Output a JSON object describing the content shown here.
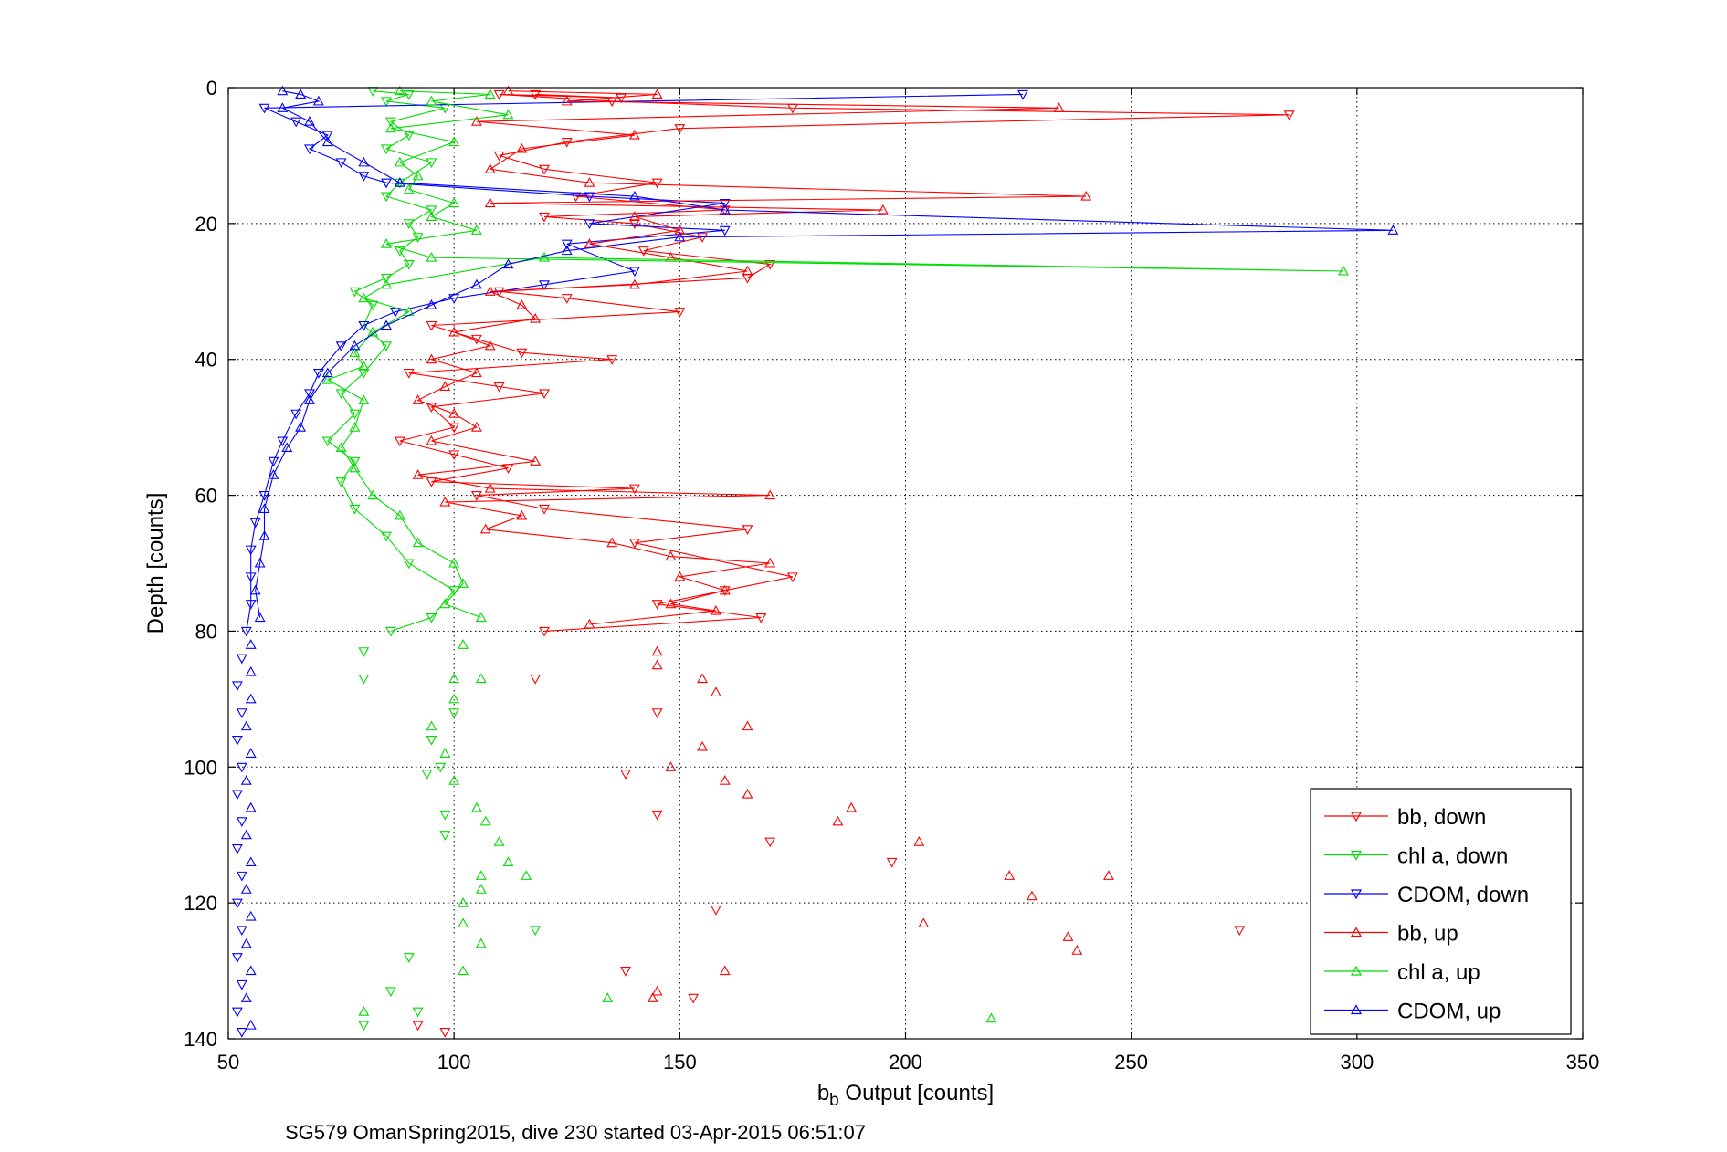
{
  "chart_data": {
    "type": "line",
    "title": "",
    "xlabel_main": "b",
    "xlabel_sub": "b",
    "xlabel_rest": " Output [counts]",
    "ylabel": "Depth [counts]",
    "caption": "SG579 OmanSpring2015, dive 230 started 03-Apr-2015 06:51:07",
    "xlim": [
      50,
      350
    ],
    "ylim": [
      0,
      140
    ],
    "y_reversed": true,
    "grid": true,
    "legend_position": "bottom-right",
    "xticks": [
      50,
      100,
      150,
      200,
      250,
      300,
      350
    ],
    "yticks": [
      0,
      20,
      40,
      60,
      80,
      100,
      120,
      140
    ],
    "series": [
      {
        "name": "bb, down",
        "color": "#ff0000",
        "marker": "triangle-down",
        "points": [
          [
            118,
            1
          ],
          [
            137,
            1.5
          ],
          [
            110,
            1
          ],
          [
            135,
            2
          ],
          [
            175,
            3
          ],
          [
            285,
            4
          ],
          [
            150,
            6
          ],
          [
            125,
            8
          ],
          [
            110,
            10
          ],
          [
            120,
            12
          ],
          [
            145,
            14
          ],
          [
            127,
            16
          ],
          [
            160,
            18
          ],
          [
            120,
            19
          ],
          [
            140,
            20
          ],
          [
            155,
            22
          ],
          [
            142,
            24
          ],
          [
            170,
            26
          ],
          [
            165,
            28
          ],
          [
            110,
            30
          ],
          [
            125,
            31
          ],
          [
            150,
            33
          ],
          [
            95,
            35
          ],
          [
            105,
            37
          ],
          [
            115,
            39
          ],
          [
            135,
            40
          ],
          [
            90,
            42
          ],
          [
            110,
            44
          ],
          [
            120,
            45
          ],
          [
            95,
            47
          ],
          [
            100,
            50
          ],
          [
            88,
            52
          ],
          [
            100,
            54
          ],
          [
            112,
            56
          ],
          [
            95,
            58
          ],
          [
            140,
            59
          ],
          [
            105,
            60
          ],
          [
            120,
            62
          ],
          [
            165,
            65
          ],
          [
            140,
            67
          ],
          [
            175,
            72
          ],
          [
            160,
            74
          ],
          [
            145,
            76
          ],
          [
            168,
            78
          ],
          [
            120,
            80
          ],
          [
            118,
            87
          ],
          [
            145,
            92
          ],
          [
            138,
            101
          ],
          [
            145,
            107
          ],
          [
            170,
            111
          ],
          [
            197,
            114
          ],
          [
            158,
            121
          ],
          [
            274,
            124
          ],
          [
            138,
            130
          ],
          [
            153,
            134
          ],
          [
            92,
            138
          ],
          [
            98,
            139
          ]
        ]
      },
      {
        "name": "chl a, down",
        "color": "#00dd00",
        "marker": "triangle-down",
        "points": [
          [
            82,
            0.5
          ],
          [
            90,
            1
          ],
          [
            85,
            2
          ],
          [
            98,
            3
          ],
          [
            86,
            5
          ],
          [
            90,
            7
          ],
          [
            85,
            9
          ],
          [
            95,
            11
          ],
          [
            88,
            14
          ],
          [
            85,
            16
          ],
          [
            95,
            18
          ],
          [
            90,
            20
          ],
          [
            92,
            22
          ],
          [
            88,
            24
          ],
          [
            90,
            26
          ],
          [
            85,
            28
          ],
          [
            78,
            30
          ],
          [
            82,
            32
          ],
          [
            80,
            35
          ],
          [
            85,
            38
          ],
          [
            80,
            42
          ],
          [
            75,
            45
          ],
          [
            78,
            48
          ],
          [
            72,
            52
          ],
          [
            78,
            55
          ],
          [
            75,
            58
          ],
          [
            78,
            62
          ],
          [
            85,
            66
          ],
          [
            90,
            70
          ],
          [
            100,
            74
          ],
          [
            95,
            78
          ],
          [
            86,
            80
          ],
          [
            80,
            83
          ],
          [
            80,
            87
          ],
          [
            100,
            92
          ],
          [
            95,
            96
          ],
          [
            97,
            100
          ],
          [
            94,
            101
          ],
          [
            98,
            107
          ],
          [
            98,
            110
          ],
          [
            118,
            124
          ],
          [
            90,
            128
          ],
          [
            86,
            133
          ],
          [
            92,
            136
          ],
          [
            80,
            138
          ]
        ]
      },
      {
        "name": "CDOM, down",
        "color": "#0000ff",
        "marker": "triangle-down",
        "points": [
          [
            226,
            1
          ],
          [
            58,
            3
          ],
          [
            65,
            5
          ],
          [
            72,
            7
          ],
          [
            68,
            9
          ],
          [
            75,
            11
          ],
          [
            80,
            13
          ],
          [
            85,
            14
          ],
          [
            130,
            16
          ],
          [
            160,
            17
          ],
          [
            130,
            20
          ],
          [
            160,
            21
          ],
          [
            125,
            23
          ],
          [
            140,
            27
          ],
          [
            120,
            29
          ],
          [
            100,
            31
          ],
          [
            87,
            33
          ],
          [
            80,
            35
          ],
          [
            75,
            38
          ],
          [
            70,
            42
          ],
          [
            68,
            45
          ],
          [
            65,
            48
          ],
          [
            62,
            52
          ],
          [
            60,
            55
          ],
          [
            58,
            60
          ],
          [
            56,
            64
          ],
          [
            55,
            68
          ],
          [
            55,
            72
          ],
          [
            55,
            76
          ],
          [
            54,
            80
          ],
          [
            53,
            84
          ],
          [
            52,
            88
          ],
          [
            53,
            92
          ],
          [
            52,
            96
          ],
          [
            53,
            100
          ],
          [
            52,
            104
          ],
          [
            53,
            108
          ],
          [
            52,
            112
          ],
          [
            53,
            116
          ],
          [
            52,
            120
          ],
          [
            53,
            124
          ],
          [
            52,
            128
          ],
          [
            53,
            132
          ],
          [
            52,
            136
          ],
          [
            53,
            139
          ]
        ]
      },
      {
        "name": "bb, up",
        "color": "#ff0000",
        "marker": "triangle-up",
        "points": [
          [
            112,
            0.5
          ],
          [
            145,
            1
          ],
          [
            125,
            2
          ],
          [
            234,
            3
          ],
          [
            105,
            5
          ],
          [
            140,
            7
          ],
          [
            115,
            9
          ],
          [
            108,
            12
          ],
          [
            130,
            14
          ],
          [
            240,
            16
          ],
          [
            108,
            17
          ],
          [
            195,
            18
          ],
          [
            140,
            19
          ],
          [
            150,
            21
          ],
          [
            130,
            23
          ],
          [
            148,
            25
          ],
          [
            165,
            27
          ],
          [
            140,
            29
          ],
          [
            108,
            30
          ],
          [
            115,
            32
          ],
          [
            118,
            34
          ],
          [
            100,
            36
          ],
          [
            108,
            38
          ],
          [
            95,
            40
          ],
          [
            105,
            42
          ],
          [
            98,
            44
          ],
          [
            92,
            46
          ],
          [
            100,
            48
          ],
          [
            105,
            50
          ],
          [
            95,
            52
          ],
          [
            118,
            55
          ],
          [
            92,
            57
          ],
          [
            108,
            59
          ],
          [
            170,
            60
          ],
          [
            98,
            61
          ],
          [
            115,
            63
          ],
          [
            107,
            65
          ],
          [
            135,
            67
          ],
          [
            148,
            69
          ],
          [
            170,
            70
          ],
          [
            150,
            72
          ],
          [
            160,
            74
          ],
          [
            148,
            76
          ],
          [
            158,
            77
          ],
          [
            130,
            79
          ],
          [
            145,
            83
          ],
          [
            145,
            85
          ],
          [
            155,
            87
          ],
          [
            158,
            89
          ],
          [
            155,
            97
          ],
          [
            165,
            94
          ],
          [
            148,
            100
          ],
          [
            160,
            102
          ],
          [
            165,
            104
          ],
          [
            188,
            106
          ],
          [
            185,
            108
          ],
          [
            203,
            111
          ],
          [
            223,
            116
          ],
          [
            245,
            116
          ],
          [
            228,
            119
          ],
          [
            204,
            123
          ],
          [
            236,
            125
          ],
          [
            238,
            127
          ],
          [
            160,
            130
          ],
          [
            144,
            134
          ],
          [
            145,
            133
          ]
        ]
      },
      {
        "name": "chl a, up",
        "color": "#00dd00",
        "marker": "triangle-up",
        "points": [
          [
            88,
            0.5
          ],
          [
            108,
            1
          ],
          [
            95,
            2
          ],
          [
            112,
            4
          ],
          [
            86,
            6
          ],
          [
            100,
            8
          ],
          [
            88,
            11
          ],
          [
            92,
            13
          ],
          [
            90,
            15
          ],
          [
            100,
            17
          ],
          [
            95,
            19
          ],
          [
            105,
            21
          ],
          [
            85,
            23
          ],
          [
            95,
            25
          ],
          [
            297,
            27
          ],
          [
            120,
            25
          ],
          [
            85,
            29
          ],
          [
            80,
            31
          ],
          [
            90,
            33
          ],
          [
            82,
            36
          ],
          [
            78,
            39
          ],
          [
            80,
            41
          ],
          [
            72,
            43
          ],
          [
            80,
            46
          ],
          [
            78,
            50
          ],
          [
            75,
            53
          ],
          [
            78,
            56
          ],
          [
            82,
            60
          ],
          [
            88,
            63
          ],
          [
            92,
            67
          ],
          [
            100,
            70
          ],
          [
            102,
            73
          ],
          [
            98,
            76
          ],
          [
            106,
            78
          ],
          [
            102,
            82
          ],
          [
            100,
            87
          ],
          [
            100,
            90
          ],
          [
            106,
            87
          ],
          [
            95,
            94
          ],
          [
            98,
            98
          ],
          [
            100,
            102
          ],
          [
            105,
            106
          ],
          [
            107,
            108
          ],
          [
            110,
            111
          ],
          [
            112,
            114
          ],
          [
            106,
            116
          ],
          [
            116,
            116
          ],
          [
            106,
            118
          ],
          [
            102,
            120
          ],
          [
            102,
            123
          ],
          [
            106,
            126
          ],
          [
            102,
            130
          ],
          [
            134,
            134
          ],
          [
            219,
            137
          ],
          [
            80,
            136
          ]
        ]
      },
      {
        "name": "CDOM, up",
        "color": "#0000ff",
        "marker": "triangle-up",
        "points": [
          [
            62,
            0.5
          ],
          [
            66,
            1
          ],
          [
            70,
            2
          ],
          [
            62,
            3
          ],
          [
            68,
            5
          ],
          [
            72,
            8
          ],
          [
            80,
            11
          ],
          [
            88,
            14
          ],
          [
            140,
            16
          ],
          [
            160,
            18
          ],
          [
            308,
            21
          ],
          [
            150,
            22
          ],
          [
            125,
            24
          ],
          [
            112,
            26
          ],
          [
            105,
            29
          ],
          [
            95,
            32
          ],
          [
            85,
            35
          ],
          [
            78,
            38
          ],
          [
            72,
            42
          ],
          [
            68,
            46
          ],
          [
            66,
            50
          ],
          [
            63,
            53
          ],
          [
            60,
            57
          ],
          [
            58,
            62
          ],
          [
            58,
            66
          ],
          [
            57,
            70
          ],
          [
            56,
            74
          ],
          [
            57,
            78
          ],
          [
            55,
            82
          ],
          [
            55,
            86
          ],
          [
            55,
            90
          ],
          [
            54,
            94
          ],
          [
            55,
            98
          ],
          [
            54,
            102
          ],
          [
            55,
            106
          ],
          [
            54,
            110
          ],
          [
            55,
            114
          ],
          [
            54,
            118
          ],
          [
            55,
            122
          ],
          [
            54,
            126
          ],
          [
            55,
            130
          ],
          [
            54,
            134
          ],
          [
            55,
            138
          ]
        ]
      }
    ]
  }
}
